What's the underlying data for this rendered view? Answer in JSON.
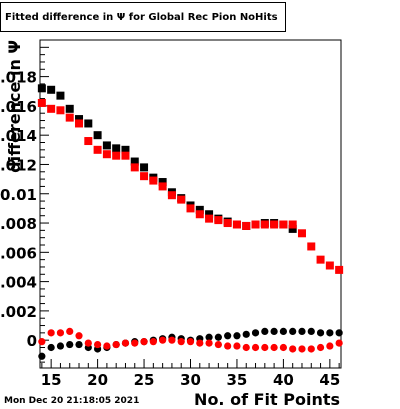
{
  "title": "Fitted difference in  Ψ  for Global Rec Pion NoHits",
  "timestamp": "Mon Dec 20 21:18:05 2021",
  "colors": {
    "series1": "#000000",
    "series2": "#ff0000",
    "frame": "#000000"
  },
  "chart_data": {
    "type": "scatter",
    "xlabel": "No. of Fit Points",
    "ylabel": "difference in Ψ",
    "xlim": [
      13.8,
      46.2
    ],
    "ylim": [
      -0.0019,
      0.0205
    ],
    "x_ticks": [
      "15",
      "20",
      "25",
      "30",
      "35",
      "40",
      "45"
    ],
    "y_ticks": [
      "0",
      "0.002",
      "0.004",
      "0.006",
      "0.008",
      "0.01",
      "0.012",
      "0.014",
      "0.016",
      "0.018"
    ],
    "series": [
      {
        "marker": "square",
        "color": "#000000",
        "x": [
          14,
          15,
          16,
          17,
          18,
          19,
          20,
          21,
          22,
          23,
          24,
          25,
          26,
          27,
          28,
          29,
          30,
          31,
          32,
          33,
          34,
          35,
          36,
          37,
          38,
          39,
          40,
          41
        ],
        "values": [
          0.0172,
          0.0171,
          0.0167,
          0.0158,
          0.0151,
          0.0148,
          0.014,
          0.0133,
          0.0131,
          0.013,
          0.0122,
          0.0118,
          0.0111,
          0.0108,
          0.0101,
          0.0097,
          0.0092,
          0.0089,
          0.0086,
          0.0083,
          0.0081,
          0.0079,
          0.0078,
          0.0079,
          0.008,
          0.008,
          0.0079,
          0.0076
        ]
      },
      {
        "marker": "square",
        "color": "#ff0000",
        "x": [
          14,
          15,
          16,
          17,
          18,
          19,
          20,
          21,
          22,
          23,
          24,
          25,
          26,
          27,
          28,
          29,
          30,
          31,
          32,
          33,
          34,
          35,
          36,
          37,
          38,
          39,
          40,
          41,
          42,
          43,
          44,
          45,
          46
        ],
        "values": [
          0.0162,
          0.0158,
          0.0157,
          0.0152,
          0.0148,
          0.0136,
          0.013,
          0.0127,
          0.0126,
          0.0126,
          0.0118,
          0.0112,
          0.0109,
          0.0105,
          0.0099,
          0.0096,
          0.009,
          0.0086,
          0.0083,
          0.0082,
          0.008,
          0.0079,
          0.0078,
          0.0079,
          0.0079,
          0.0079,
          0.0079,
          0.0079,
          0.0073,
          0.0064,
          0.0055,
          0.0051,
          0.0048
        ]
      },
      {
        "marker": "circle",
        "color": "#000000",
        "x": [
          14,
          15,
          16,
          17,
          18,
          19,
          20,
          21,
          22,
          23,
          24,
          25,
          26,
          27,
          28,
          29,
          30,
          31,
          32,
          33,
          34,
          35,
          36,
          37,
          38,
          39,
          40,
          41,
          42,
          43,
          44,
          45,
          46
        ],
        "values": [
          -0.0011,
          -0.0005,
          -0.0004,
          -0.0003,
          -0.0003,
          -0.0005,
          -0.0006,
          -0.0005,
          -0.0003,
          -0.0002,
          -0.0001,
          -0.0001,
          0.0,
          0.0001,
          0.0002,
          0.0001,
          0.0,
          0.0001,
          0.0002,
          0.0002,
          0.0003,
          0.0003,
          0.0004,
          0.0005,
          0.0006,
          0.0006,
          0.0006,
          0.0006,
          0.0006,
          0.0006,
          0.0005,
          0.0005,
          0.0005
        ]
      },
      {
        "marker": "circle",
        "color": "#ff0000",
        "x": [
          14,
          15,
          16,
          17,
          18,
          19,
          20,
          21,
          22,
          23,
          24,
          25,
          26,
          27,
          28,
          29,
          30,
          31,
          32,
          33,
          34,
          35,
          36,
          37,
          38,
          39,
          40,
          41,
          42,
          43,
          44,
          45,
          46
        ],
        "values": [
          -0.0001,
          0.0005,
          0.0005,
          0.0006,
          0.0003,
          -0.0002,
          -0.0003,
          -0.0004,
          -0.0003,
          -0.0002,
          -0.0002,
          -0.0001,
          -0.0001,
          0.0,
          0.0,
          -0.0001,
          -0.0001,
          -0.0002,
          -0.0002,
          -0.0003,
          -0.0004,
          -0.0004,
          -0.0005,
          -0.0005,
          -0.0005,
          -0.0005,
          -0.0005,
          -0.0006,
          -0.0006,
          -0.0006,
          -0.0005,
          -0.0004,
          -0.0002
        ]
      }
    ]
  }
}
